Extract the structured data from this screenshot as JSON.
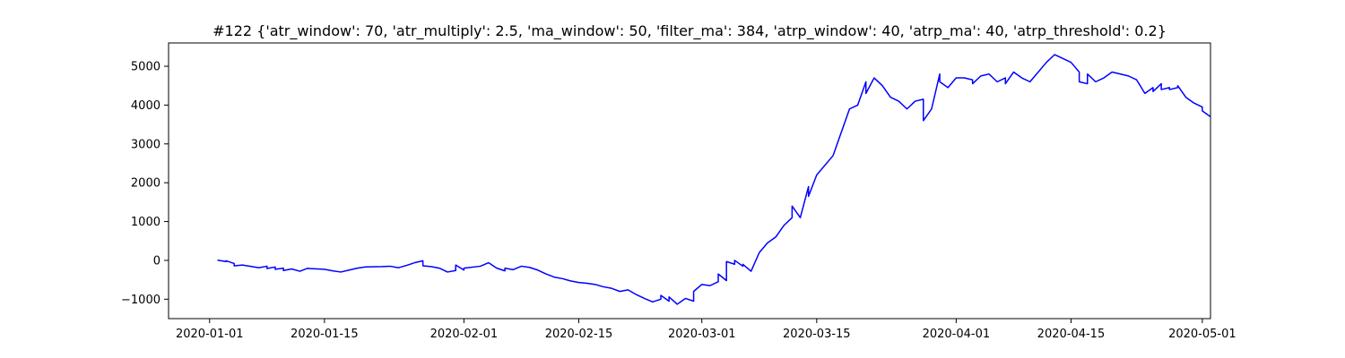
{
  "chart_data": {
    "type": "line",
    "title": "#122 {'atr_window': 70, 'atr_multiply': 2.5, 'ma_window': 50, 'filter_ma': 384, 'atrp_window': 40, 'atrp_ma': 40, 'atrp_threshold': 0.2}",
    "xlabel": "",
    "ylabel": "",
    "xlim": [
      "2019-12-27",
      "2020-05-02"
    ],
    "ylim": [
      -1500,
      5600
    ],
    "grid": false,
    "legend": "none",
    "x_ticks": [
      "2020-01-01",
      "2020-01-15",
      "2020-02-01",
      "2020-02-15",
      "2020-03-01",
      "2020-03-15",
      "2020-04-01",
      "2020-04-15",
      "2020-05-01"
    ],
    "y_ticks": [
      -1000,
      0,
      1000,
      2000,
      3000,
      4000,
      5000
    ],
    "series": [
      {
        "color": "#0000ff",
        "points": [
          [
            "2020-01-02",
            0
          ],
          [
            "2020-01-02",
            5
          ],
          [
            "2020-01-03",
            -30
          ],
          [
            "2020-01-03",
            -10
          ],
          [
            "2020-01-04",
            -80
          ],
          [
            "2020-01-04",
            -140
          ],
          [
            "2020-01-05",
            -120
          ],
          [
            "2020-01-07",
            -190
          ],
          [
            "2020-01-08",
            -150
          ],
          [
            "2020-01-08",
            -210
          ],
          [
            "2020-01-09",
            -170
          ],
          [
            "2020-01-09",
            -230
          ],
          [
            "2020-01-10",
            -200
          ],
          [
            "2020-01-10",
            -260
          ],
          [
            "2020-01-11",
            -220
          ],
          [
            "2020-01-12",
            -280
          ],
          [
            "2020-01-13",
            -200
          ],
          [
            "2020-01-13",
            -210
          ],
          [
            "2020-01-15",
            -230
          ],
          [
            "2020-01-16",
            -270
          ],
          [
            "2020-01-17",
            -300
          ],
          [
            "2020-01-18",
            -250
          ],
          [
            "2020-01-19",
            -200
          ],
          [
            "2020-01-20",
            -170
          ],
          [
            "2020-01-22",
            -160
          ],
          [
            "2020-01-23",
            -150
          ],
          [
            "2020-01-24",
            -190
          ],
          [
            "2020-01-25",
            -130
          ],
          [
            "2020-01-26",
            -60
          ],
          [
            "2020-01-27",
            -10
          ],
          [
            "2020-01-27",
            -140
          ],
          [
            "2020-01-28",
            -160
          ],
          [
            "2020-01-29",
            -200
          ],
          [
            "2020-01-30",
            -300
          ],
          [
            "2020-01-31",
            -260
          ],
          [
            "2020-01-31",
            -120
          ],
          [
            "2020-02-01",
            -250
          ],
          [
            "2020-02-01",
            -200
          ],
          [
            "2020-02-03",
            -150
          ],
          [
            "2020-02-04",
            -60
          ],
          [
            "2020-02-05",
            -200
          ],
          [
            "2020-02-06",
            -270
          ],
          [
            "2020-02-06",
            -200
          ],
          [
            "2020-02-07",
            -240
          ],
          [
            "2020-02-08",
            -150
          ],
          [
            "2020-02-09",
            -180
          ],
          [
            "2020-02-10",
            -250
          ],
          [
            "2020-02-11",
            -350
          ],
          [
            "2020-02-12",
            -430
          ],
          [
            "2020-02-13",
            -470
          ],
          [
            "2020-02-14",
            -530
          ],
          [
            "2020-02-15",
            -570
          ],
          [
            "2020-02-16",
            -590
          ],
          [
            "2020-02-17",
            -620
          ],
          [
            "2020-02-18",
            -680
          ],
          [
            "2020-02-19",
            -720
          ],
          [
            "2020-02-20",
            -800
          ],
          [
            "2020-02-21",
            -760
          ],
          [
            "2020-02-22",
            -880
          ],
          [
            "2020-02-23",
            -980
          ],
          [
            "2020-02-24",
            -1070
          ],
          [
            "2020-02-25",
            -1000
          ],
          [
            "2020-02-25",
            -900
          ],
          [
            "2020-02-26",
            -1050
          ],
          [
            "2020-02-26",
            -940
          ],
          [
            "2020-02-27",
            -1130
          ],
          [
            "2020-02-28",
            -980
          ],
          [
            "2020-02-29",
            -1050
          ],
          [
            "2020-02-29",
            -800
          ],
          [
            "2020-03-01",
            -620
          ],
          [
            "2020-03-02",
            -650
          ],
          [
            "2020-03-03",
            -550
          ],
          [
            "2020-03-03",
            -350
          ],
          [
            "2020-03-04",
            -520
          ],
          [
            "2020-03-04",
            -30
          ],
          [
            "2020-03-05",
            -100
          ],
          [
            "2020-03-05",
            0
          ],
          [
            "2020-03-06",
            -150
          ],
          [
            "2020-03-06",
            -100
          ],
          [
            "2020-03-07",
            -280
          ],
          [
            "2020-03-08",
            200
          ],
          [
            "2020-03-09",
            450
          ],
          [
            "2020-03-10",
            600
          ],
          [
            "2020-03-11",
            900
          ],
          [
            "2020-03-12",
            1100
          ],
          [
            "2020-03-12",
            1400
          ],
          [
            "2020-03-13",
            1100
          ],
          [
            "2020-03-14",
            1900
          ],
          [
            "2020-03-14",
            1650
          ],
          [
            "2020-03-15",
            2200
          ],
          [
            "2020-03-17",
            2700
          ],
          [
            "2020-03-18",
            3300
          ],
          [
            "2020-03-19",
            3900
          ],
          [
            "2020-03-20",
            4000
          ],
          [
            "2020-03-21",
            4600
          ],
          [
            "2020-03-21",
            4300
          ],
          [
            "2020-03-22",
            4700
          ],
          [
            "2020-03-23",
            4500
          ],
          [
            "2020-03-24",
            4200
          ],
          [
            "2020-03-25",
            4100
          ],
          [
            "2020-03-26",
            3900
          ],
          [
            "2020-03-27",
            4100
          ],
          [
            "2020-03-28",
            4150
          ],
          [
            "2020-03-28",
            3600
          ],
          [
            "2020-03-29",
            3900
          ],
          [
            "2020-03-30",
            4800
          ],
          [
            "2020-03-30",
            4600
          ],
          [
            "2020-03-31",
            4450
          ],
          [
            "2020-04-01",
            4700
          ],
          [
            "2020-04-02",
            4700
          ],
          [
            "2020-04-03",
            4650
          ],
          [
            "2020-04-03",
            4550
          ],
          [
            "2020-04-04",
            4750
          ],
          [
            "2020-04-05",
            4800
          ],
          [
            "2020-04-06",
            4600
          ],
          [
            "2020-04-07",
            4700
          ],
          [
            "2020-04-07",
            4550
          ],
          [
            "2020-04-08",
            4850
          ],
          [
            "2020-04-09",
            4700
          ],
          [
            "2020-04-10",
            4600
          ],
          [
            "2020-04-12",
            5100
          ],
          [
            "2020-04-13",
            5300
          ],
          [
            "2020-04-14",
            5200
          ],
          [
            "2020-04-15",
            5100
          ],
          [
            "2020-04-16",
            4850
          ],
          [
            "2020-04-16",
            4600
          ],
          [
            "2020-04-17",
            4550
          ],
          [
            "2020-04-17",
            4800
          ],
          [
            "2020-04-18",
            4600
          ],
          [
            "2020-04-19",
            4700
          ],
          [
            "2020-04-20",
            4850
          ],
          [
            "2020-04-22",
            4750
          ],
          [
            "2020-04-23",
            4650
          ],
          [
            "2020-04-24",
            4300
          ],
          [
            "2020-04-25",
            4450
          ],
          [
            "2020-04-25",
            4350
          ],
          [
            "2020-04-26",
            4550
          ],
          [
            "2020-04-26",
            4400
          ],
          [
            "2020-04-27",
            4450
          ],
          [
            "2020-04-27",
            4400
          ],
          [
            "2020-04-28",
            4450
          ],
          [
            "2020-04-28",
            4500
          ],
          [
            "2020-04-29",
            4200
          ],
          [
            "2020-04-30",
            4050
          ],
          [
            "2020-05-01",
            3950
          ],
          [
            "2020-05-01",
            3850
          ],
          [
            "2020-05-02",
            3700
          ]
        ]
      }
    ]
  }
}
